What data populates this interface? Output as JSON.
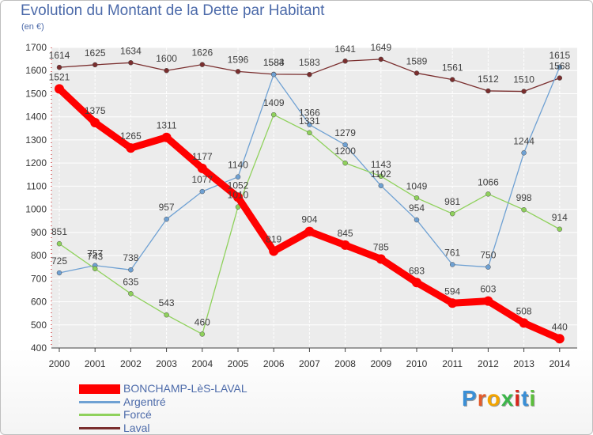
{
  "title": "Evolution du Montant de la Dette par Habitant",
  "subtitle": "(en €)",
  "logo": {
    "text": "Proxiti",
    "letter_colors": [
      "#3a8fd6",
      "#e45b2a",
      "#f2a400",
      "#3cb54a",
      "#d8281d",
      "#3a8fd6",
      "#5bbf3b"
    ]
  },
  "chart_data": {
    "type": "line",
    "title": "Evolution du Montant de la Dette par Habitant",
    "subtitle": "(en €)",
    "x": [
      "2000",
      "2001",
      "2002",
      "2003",
      "2004",
      "2005",
      "2006",
      "2007",
      "2008",
      "2009",
      "2010",
      "2011",
      "2012",
      "2013",
      "2014"
    ],
    "ylim": [
      400,
      1700
    ],
    "yticks": [
      400,
      500,
      600,
      700,
      800,
      900,
      1000,
      1100,
      1200,
      1300,
      1400,
      1500,
      1600,
      1700
    ],
    "grid": true,
    "legend_position": "bottom-left",
    "series": [
      {
        "name": "BONCHAMP-LèS-LAVAL",
        "color": "#ff0000",
        "values": [
          1521,
          1375,
          1265,
          1311,
          1177,
          1052,
          819,
          904,
          845,
          785,
          683,
          594,
          603,
          508,
          440
        ]
      },
      {
        "name": "Argentré",
        "color": "#6fa1d3",
        "values": [
          725,
          757,
          738,
          957,
          1077,
          1140,
          1583,
          1366,
          1279,
          1102,
          954,
          761,
          750,
          1244,
          1615
        ]
      },
      {
        "name": "Forcé",
        "color": "#8fd15c",
        "values": [
          851,
          743,
          635,
          543,
          460,
          1010,
          1409,
          1331,
          1200,
          1143,
          1049,
          981,
          1066,
          998,
          914
        ]
      },
      {
        "name": "Laval",
        "color": "#7a2e2e",
        "values": [
          1614,
          1625,
          1634,
          1600,
          1626,
          1596,
          1584,
          1583,
          1641,
          1649,
          1589,
          1561,
          1512,
          1510,
          1568
        ]
      }
    ]
  }
}
